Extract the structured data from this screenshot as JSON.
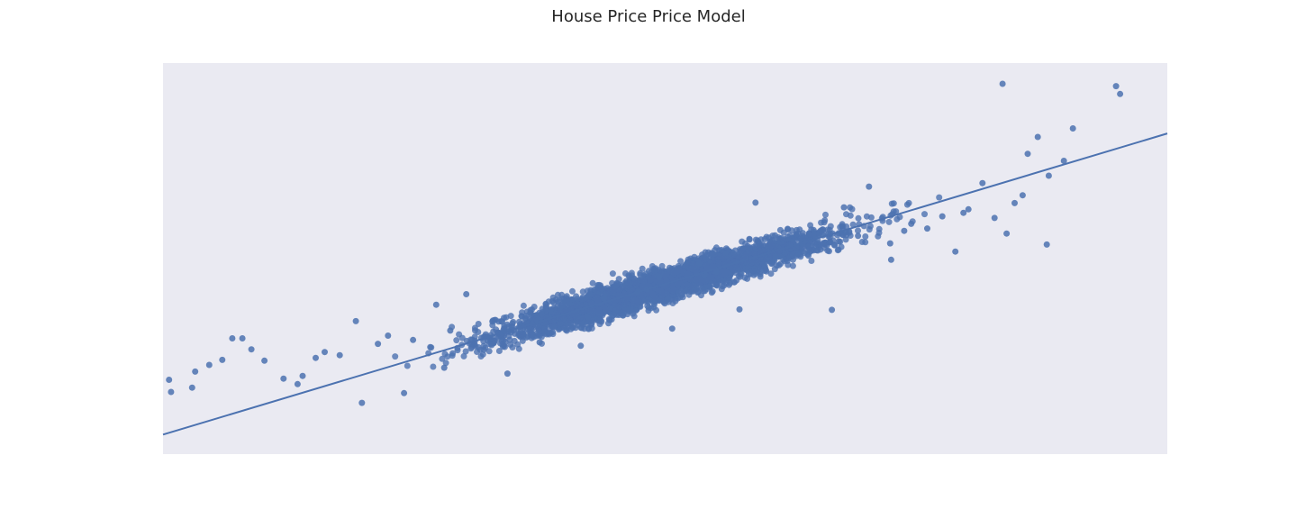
{
  "chart_data": {
    "type": "scatter",
    "title": "House Price Price Model",
    "xlabel": "",
    "ylabel": "",
    "xlim": [
      0,
      100
    ],
    "ylim": [
      0,
      100
    ],
    "grid": false,
    "colors": {
      "points": "#4c72b0",
      "line": "#4c72b0",
      "background": "#eaeaf2"
    },
    "regression_line": {
      "x": [
        0,
        100
      ],
      "y": [
        5,
        82
      ]
    },
    "series": [
      {
        "x": [
          0.6,
          0.8,
          6.9,
          36.6,
          72.4,
          94.9,
          95.3,
          87.1,
          89.7,
          90.6,
          83.6,
          86.1,
          88.2,
          85.6,
          84.8,
          82.8,
          84.0,
          88.0,
          78.9,
          72.5,
          66.6,
          57.4,
          50.7,
          41.6,
          34.3,
          28.0,
          19.8,
          13.9,
          7.9,
          19.2,
          13.4,
          24.0,
          17.6,
          27.2,
          45.1,
          62.2,
          53.4,
          70.3,
          59.0,
          67.8,
          30.2,
          42.3,
          49.4,
          55.6,
          37.5,
          12.0,
          2.9,
          4.6,
          10.1,
          16.1,
          22.4,
          76.1,
          81.6,
          79.7,
          3.2,
          5.9,
          8.8,
          24.9,
          32.8,
          39.7,
          47.3,
          53.9,
          61.0,
          64.9,
          69.2,
          74.5,
          77.6,
          80.2,
          73.8,
          67.3,
          60.6,
          55.1,
          48.2,
          43.9,
          38.6,
          33.1,
          28.6,
          21.4,
          15.2
        ],
        "y": [
          19.0,
          15.9,
          29.6,
          36.1,
          53.9,
          94.1,
          92.1,
          81.1,
          75.0,
          83.3,
          94.7,
          76.8,
          71.2,
          66.2,
          64.2,
          60.4,
          56.4,
          53.6,
          51.8,
          49.7,
          36.9,
          37.0,
          32.1,
          27.7,
          20.6,
          22.1,
          13.1,
          20.0,
          29.6,
          34.0,
          17.9,
          15.6,
          25.3,
          38.2,
          43.2,
          57.6,
          48.8,
          68.4,
          64.3,
          63.1,
          40.9,
          35.1,
          45.2,
          52.2,
          28.6,
          19.3,
          17.0,
          22.8,
          23.9,
          26.1,
          30.3,
          57.7,
          69.3,
          61.7,
          21.1,
          24.1,
          26.8,
          29.2,
          33.9,
          37.9,
          41.5,
          45.8,
          50.5,
          52.9,
          55.8,
          58.9,
          60.8,
          62.6,
          57.1,
          54.4,
          48.7,
          46.6,
          42.2,
          39.8,
          36.7,
          34.3,
          31.6,
          28.2,
          24.6
        ]
      }
    ]
  }
}
